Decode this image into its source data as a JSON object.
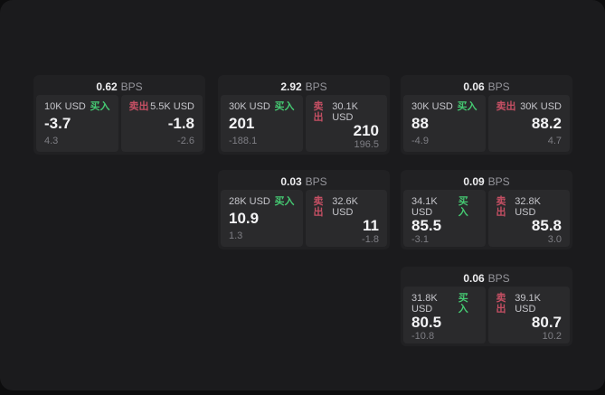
{
  "labels": {
    "buy": "买入",
    "sell": "卖出",
    "bps_unit": "BPS"
  },
  "colors": {
    "background": "#0d0d0e",
    "panel": "#1b1b1d",
    "card": "#212123",
    "tile": "#2a2a2c",
    "buy_green": "#45c972",
    "sell_red": "#c44f63",
    "value_white": "#f3f3f5",
    "delta_gray": "#7e7e84",
    "amount_gray": "#c6c6cb",
    "unit_gray": "#95959b"
  },
  "cards": [
    {
      "bps": "0.62",
      "buy": {
        "amount": "10K USD",
        "value": "-3.7",
        "delta": "4.3"
      },
      "sell": {
        "amount": "5.5K USD",
        "value": "-1.8",
        "delta": "-2.6"
      }
    },
    {
      "bps": "2.92",
      "buy": {
        "amount": "30K USD",
        "value": "201",
        "delta": "-188.1"
      },
      "sell": {
        "amount": "30.1K USD",
        "value": "210",
        "delta": "196.5"
      }
    },
    {
      "bps": "0.06",
      "buy": {
        "amount": "30K USD",
        "value": "88",
        "delta": "-4.9"
      },
      "sell": {
        "amount": "30K USD",
        "value": "88.2",
        "delta": "4.7"
      }
    },
    {
      "bps": "0.03",
      "buy": {
        "amount": "28K USD",
        "value": "10.9",
        "delta": "1.3"
      },
      "sell": {
        "amount": "32.6K USD",
        "value": "11",
        "delta": "-1.8"
      }
    },
    {
      "bps": "0.09",
      "buy": {
        "amount": "34.1K USD",
        "value": "85.5",
        "delta": "-3.1"
      },
      "sell": {
        "amount": "32.8K USD",
        "value": "85.8",
        "delta": "3.0"
      }
    },
    {
      "bps": "0.06",
      "buy": {
        "amount": "31.8K USD",
        "value": "80.5",
        "delta": "-10.8"
      },
      "sell": {
        "amount": "39.1K USD",
        "value": "80.7",
        "delta": "10.2"
      }
    }
  ]
}
